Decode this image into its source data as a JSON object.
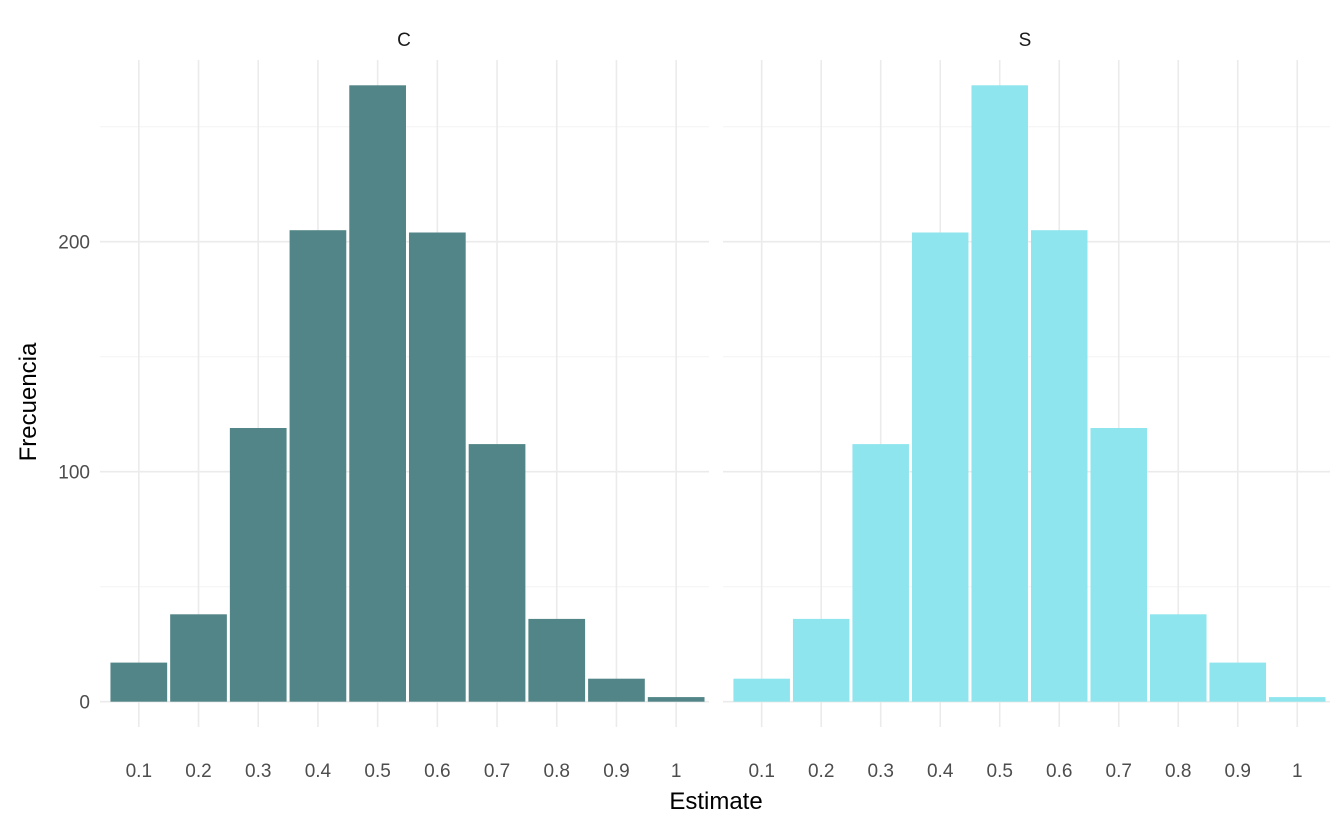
{
  "chart_data": {
    "type": "bar",
    "facet_type": "histogram-facets",
    "xlabel": "Estimate",
    "ylabel": "Frecuencia",
    "x_ticks": [
      0.1,
      0.2,
      0.3,
      0.4,
      0.5,
      0.6,
      0.7,
      0.8,
      0.9,
      1
    ],
    "x_tick_labels": [
      "0.1",
      "0.2",
      "0.3",
      "0.4",
      "0.5",
      "0.6",
      "0.7",
      "0.8",
      "0.9",
      "1"
    ],
    "xlim": [
      0.035,
      1.055
    ],
    "y_ticks": [
      0,
      100,
      200
    ],
    "y_tick_labels": [
      "0",
      "100",
      "200"
    ],
    "ylim": [
      -11,
      279
    ],
    "grid": true,
    "legend": "none",
    "panels": [
      {
        "label": "C",
        "color": "#528587",
        "bins": [
          0.05,
          0.15,
          0.25,
          0.35,
          0.45,
          0.55,
          0.65,
          0.75,
          0.85,
          0.95,
          1.05
        ],
        "counts": [
          17,
          38,
          119,
          205,
          268,
          204,
          112,
          36,
          10,
          2
        ]
      },
      {
        "label": "S",
        "color": "#8ee5ee",
        "bins": [
          0.05,
          0.15,
          0.25,
          0.35,
          0.45,
          0.55,
          0.65,
          0.75,
          0.85,
          0.95,
          1.05
        ],
        "counts": [
          10,
          36,
          112,
          204,
          268,
          205,
          119,
          38,
          17,
          2
        ]
      }
    ]
  }
}
